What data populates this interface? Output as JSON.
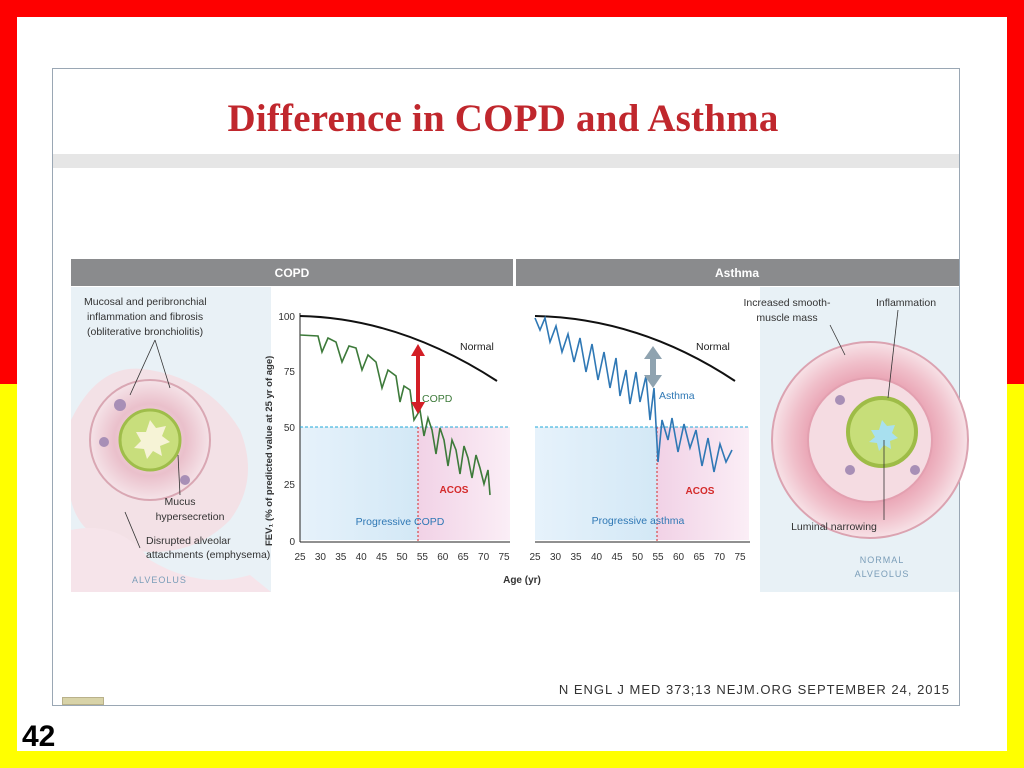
{
  "slide": {
    "title": "Difference in COPD and Asthma",
    "number": "42",
    "citation": "N ENGL J MED 373;13    NEJM.ORG    SEPTEMBER 24, 2015"
  },
  "panels": {
    "copd": {
      "header": "COPD",
      "annotations": [
        "Mucosal and peribronchial",
        "inflammation and fibrosis",
        "(obliterative bronchiolitis)"
      ],
      "mucus": [
        "Mucus",
        "hypersecretion"
      ],
      "disrupted": [
        "Disrupted alveolar",
        "attachments (emphysema)"
      ],
      "alveolus_label": "ALVEOLUS",
      "curve_label": "COPD",
      "progressive_label": "Progressive COPD",
      "acos_label": "ACOS"
    },
    "asthma": {
      "header": "Asthma",
      "smooth": [
        "Increased smooth-",
        "muscle mass"
      ],
      "inflammation": "Inflammation",
      "narrowing": "Luminal narrowing",
      "alveolus_label": [
        "NORMAL",
        "ALVEOLUS"
      ],
      "curve_label": "Asthma",
      "progressive_label": "Progressive asthma",
      "acos_label": "ACOS"
    },
    "normal_label": "Normal"
  },
  "chart_data": {
    "type": "line",
    "ylabel": "FEV₁ (% of predicted value at 25 yr of age)",
    "xlabel": "Age (yr)",
    "yticks": [
      "100",
      "75",
      "50",
      "25",
      "0"
    ],
    "xticks": [
      "25",
      "30",
      "35",
      "40",
      "45",
      "50",
      "55",
      "60",
      "65",
      "70",
      "75"
    ],
    "ylim": [
      0,
      100
    ],
    "xlim": [
      25,
      75
    ],
    "threshold_y": 50,
    "threshold_x": 55,
    "colors": {
      "copd": "#3d7a3a",
      "asthma": "#2f78b5",
      "normal": "#111111",
      "threshold_line": "#22a8d8",
      "acos": "#d42a2a",
      "arrow_copd": "#d31f26",
      "arrow_asthma": "#8fa3b0"
    }
  }
}
